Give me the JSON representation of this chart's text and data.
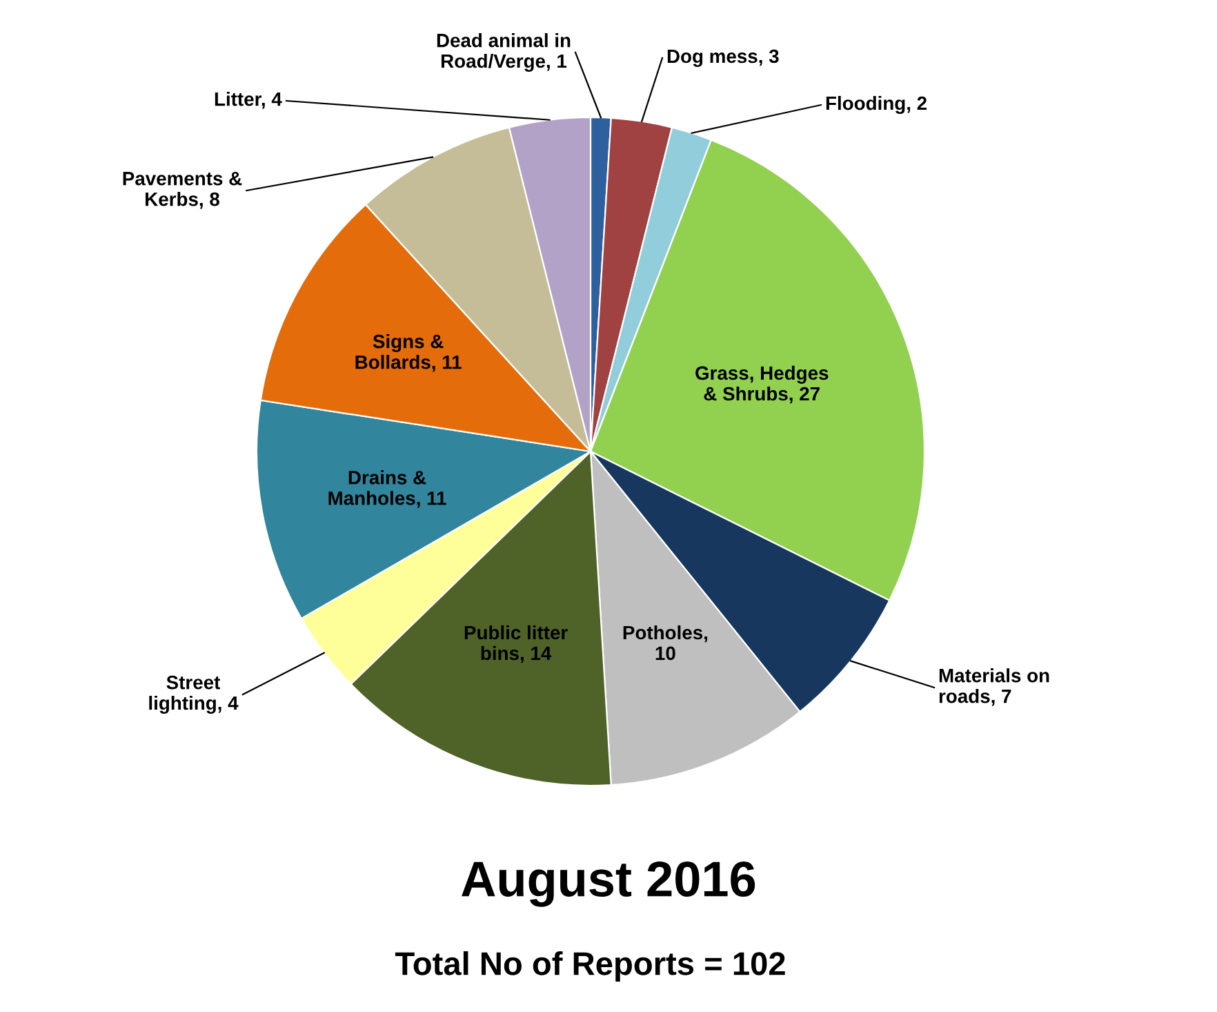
{
  "chart_data": {
    "type": "pie",
    "title": "August 2016",
    "subtitle": "Total No of Reports = 102",
    "categories": [
      "Dead animal in Road/Verge, 1",
      "Dog mess, 3",
      "Flooding, 2",
      "Grass, Hedges & Shrubs, 27",
      "Materials on roads, 7",
      "Potholes, 10",
      "Public litter bins, 14",
      "Street lighting, 4",
      "Drains & Manholes, 11",
      "Signs & Bollards, 11",
      "Pavements & Kerbs, 8",
      "Litter, 4"
    ],
    "values": [
      1,
      3,
      2,
      27,
      7,
      10,
      14,
      4,
      11,
      11,
      8,
      4
    ],
    "colors": [
      "#2e5f9e",
      "#a04242",
      "#92cddc",
      "#92d050",
      "#17375e",
      "#bfbfbf",
      "#4f6228",
      "#ffff99",
      "#31859c",
      "#e46c0a",
      "#c4bd97",
      "#b2a2c7"
    ]
  }
}
